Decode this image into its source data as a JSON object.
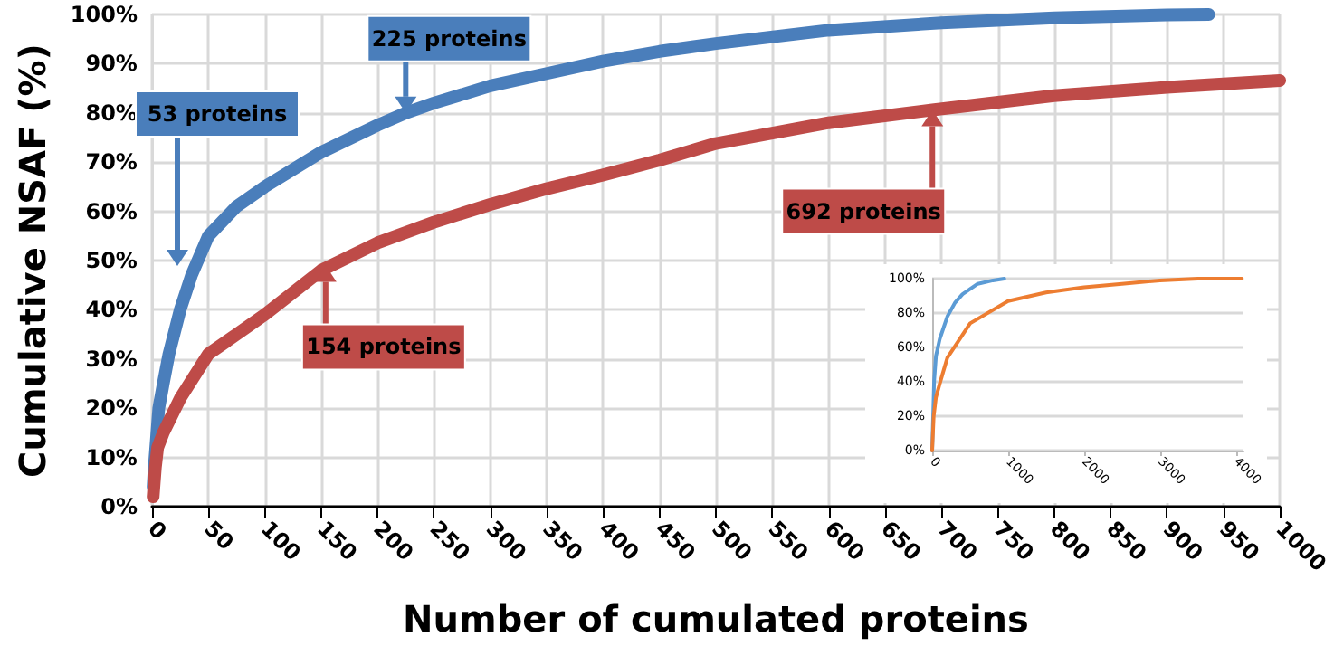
{
  "chart_data": [
    {
      "type": "line",
      "xlabel": "Number of cumulated proteins",
      "ylabel": "Cumulative NSAF (%)",
      "xlim": [
        0,
        1000
      ],
      "ylim": [
        0,
        100
      ],
      "xticks": [
        0,
        50,
        100,
        150,
        200,
        250,
        300,
        350,
        400,
        450,
        500,
        550,
        600,
        650,
        700,
        750,
        800,
        850,
        900,
        950,
        1000
      ],
      "yticks": [
        {
          "value": 0,
          "label": "0%"
        },
        {
          "value": 10,
          "label": "10%"
        },
        {
          "value": 20,
          "label": "20%"
        },
        {
          "value": 30,
          "label": "30%"
        },
        {
          "value": 40,
          "label": "40%"
        },
        {
          "value": 50,
          "label": "50%"
        },
        {
          "value": 60,
          "label": "60%"
        },
        {
          "value": 70,
          "label": "70%"
        },
        {
          "value": 80,
          "label": "80%"
        },
        {
          "value": 90,
          "label": "90%"
        },
        {
          "value": 100,
          "label": "100%"
        }
      ],
      "grid": true,
      "marker": "none",
      "line_style": "solid",
      "series": [
        {
          "color": "#4a7ebb",
          "x": [
            1,
            2,
            3,
            4,
            5,
            6,
            10,
            15,
            25,
            35,
            50,
            75,
            100,
            150,
            200,
            225,
            250,
            300,
            350,
            400,
            450,
            500,
            600,
            700,
            800,
            900,
            937
          ],
          "values": [
            4,
            8,
            11,
            14,
            17,
            20,
            25,
            31,
            40,
            47,
            55,
            61,
            65,
            72,
            77.5,
            80,
            82,
            85.5,
            88,
            90.5,
            92.5,
            94.1,
            96.8,
            98.3,
            99.3,
            99.9,
            100
          ]
        },
        {
          "color": "#be4b48",
          "x": [
            1,
            2,
            3,
            5,
            10,
            25,
            50,
            100,
            150,
            200,
            250,
            300,
            350,
            400,
            450,
            500,
            600,
            692,
            800,
            900,
            1000
          ],
          "values": [
            2,
            5,
            8,
            12,
            15,
            22,
            31,
            39,
            48,
            53.6,
            57.8,
            61.4,
            64.6,
            67.4,
            70.4,
            73.8,
            78,
            80.6,
            83.5,
            85.2,
            86.6
          ]
        }
      ],
      "annotations": [
        "53 proteins",
        {
          "text": "225 proteins",
          "x": 225,
          "y": 80
        },
        {
          "text": "154 proteins",
          "x": 154,
          "y": 49
        },
        {
          "text": "692 proteins",
          "x": 692,
          "y": 80.6
        }
      ]
    },
    {
      "type": "line",
      "xlim": [
        0,
        4100
      ],
      "ylim": [
        0,
        100
      ],
      "xticks": [
        0,
        1000,
        2000,
        3000,
        4000
      ],
      "yticks": [
        {
          "value": 0,
          "label": "0%"
        },
        {
          "value": 20,
          "label": "20%"
        },
        {
          "value": 40,
          "label": "40%"
        },
        {
          "value": 60,
          "label": "60%"
        },
        {
          "value": 80,
          "label": "80%"
        },
        {
          "value": 100,
          "label": "100%"
        }
      ],
      "grid": "y",
      "marker": "none",
      "line_style": "solid",
      "series": [
        {
          "color": "#5b9bd5",
          "x": [
            0,
            25,
            50,
            100,
            200,
            300,
            400,
            500,
            600,
            800,
            950
          ],
          "values": [
            0,
            40,
            55,
            65,
            78,
            86,
            91,
            94,
            97,
            99,
            100
          ]
        },
        {
          "color": "#ed7d31",
          "x": [
            0,
            20,
            50,
            100,
            200,
            500,
            1000,
            1500,
            2000,
            2500,
            3000,
            3500,
            4080
          ],
          "values": [
            0,
            20,
            31,
            39,
            54,
            74,
            87,
            92,
            95,
            97,
            99,
            100,
            100
          ]
        }
      ]
    }
  ]
}
